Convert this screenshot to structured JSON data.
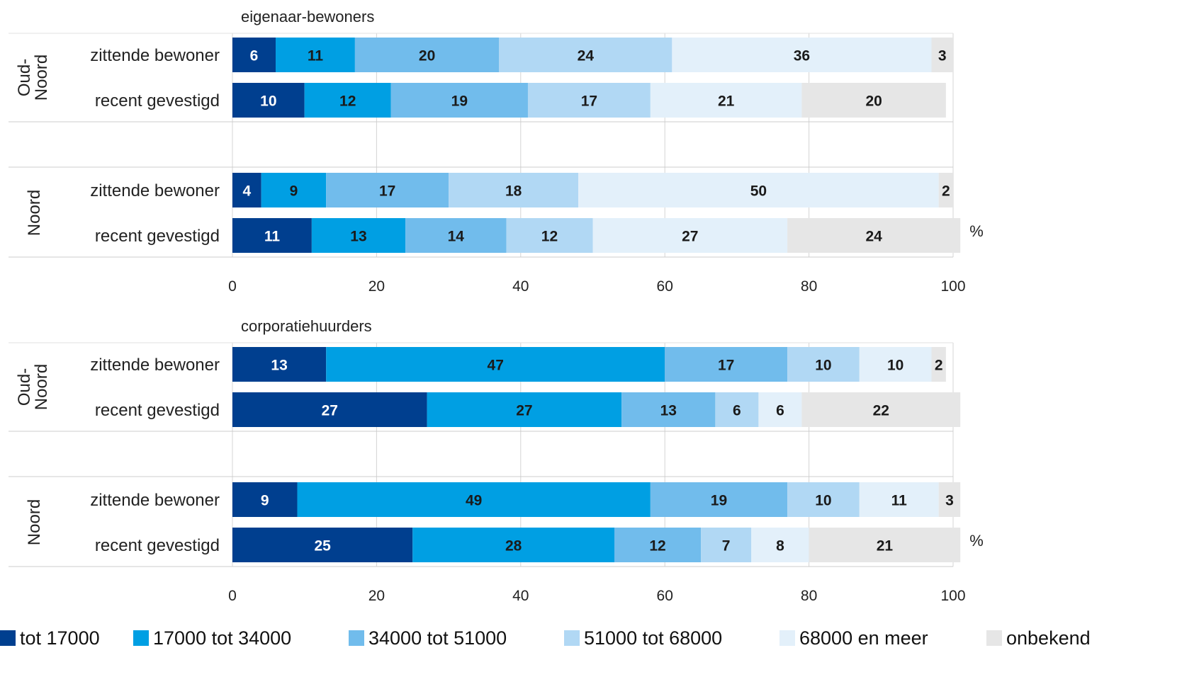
{
  "chart_data": {
    "type": "bar",
    "orientation": "horizontal",
    "stacked": true,
    "xlim": [
      0,
      100
    ],
    "xticks": [
      "0",
      "20",
      "40",
      "60",
      "80",
      "100"
    ],
    "unit_label": "%",
    "grid": true,
    "legend_position": "bottom",
    "legend": [
      {
        "label": "tot 17000",
        "color": "#003f8f"
      },
      {
        "label": "17000 tot 34000",
        "color": "#009fe3"
      },
      {
        "label": "34000 tot 51000",
        "color": "#71bcec"
      },
      {
        "label": "51000 tot 68000",
        "color": "#b1d8f4"
      },
      {
        "label": "68000 en meer",
        "color": "#e3f0fa"
      },
      {
        "label": "onbekend",
        "color": "#e6e6e6"
      }
    ],
    "panels": [
      {
        "title": "eigenaar-bewoners",
        "groups": [
          {
            "label_lines": [
              "Oud-",
              "Noord"
            ],
            "rows": [
              {
                "label": "zittende bewoner",
                "values": [
                  6,
                  11,
                  20,
                  24,
                  36,
                  3
                ]
              },
              {
                "label": "recent gevestigd",
                "values": [
                  10,
                  12,
                  19,
                  17,
                  21,
                  20
                ]
              }
            ]
          },
          {
            "label_lines": [
              "Noord"
            ],
            "rows": [
              {
                "label": "zittende bewoner",
                "values": [
                  4,
                  9,
                  17,
                  18,
                  50,
                  2
                ]
              },
              {
                "label": "recent gevestigd",
                "values": [
                  11,
                  13,
                  14,
                  12,
                  27,
                  24
                ]
              }
            ]
          }
        ]
      },
      {
        "title": "corporatiehuurders",
        "groups": [
          {
            "label_lines": [
              "Oud-",
              "Noord"
            ],
            "rows": [
              {
                "label": "zittende bewoner",
                "values": [
                  13,
                  47,
                  17,
                  10,
                  10,
                  2
                ]
              },
              {
                "label": "recent gevestigd",
                "values": [
                  27,
                  27,
                  13,
                  6,
                  6,
                  22
                ]
              }
            ]
          },
          {
            "label_lines": [
              "Noord"
            ],
            "rows": [
              {
                "label": "zittende bewoner",
                "values": [
                  9,
                  49,
                  19,
                  10,
                  11,
                  3
                ]
              },
              {
                "label": "recent gevestigd",
                "values": [
                  25,
                  28,
                  12,
                  7,
                  8,
                  21
                ]
              }
            ]
          }
        ]
      }
    ]
  }
}
